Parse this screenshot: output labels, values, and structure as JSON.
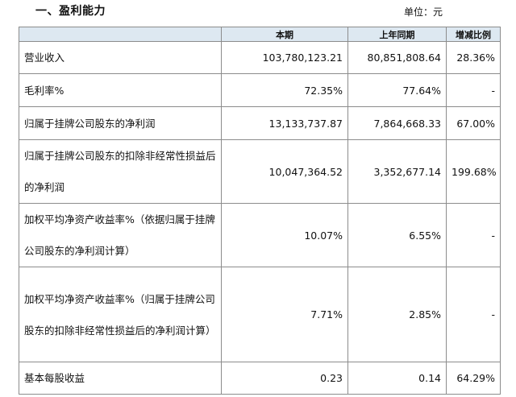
{
  "section_title": "一、盈利能力",
  "unit_label": "单位：元",
  "table": {
    "headers": [
      "",
      "本期",
      "上年同期",
      "增减比例"
    ],
    "rows": [
      {
        "label": "营业收入",
        "current": "103,780,123.21",
        "previous": "80,851,808.64",
        "change": "28.36%"
      },
      {
        "label": "毛利率%",
        "current": "72.35%",
        "previous": "77.64%",
        "change": "-"
      },
      {
        "label": "归属于挂牌公司股东的净利润",
        "current": "13,133,737.87",
        "previous": "7,864,668.33",
        "change": "67.00%"
      },
      {
        "label": "归属于挂牌公司股东的扣除非经常性损益后的净利润",
        "current": "10,047,364.52",
        "previous": "3,352,677.14",
        "change": "199.68%"
      },
      {
        "label": "加权平均净资产收益率%（依据归属于挂牌公司股东的净利润计算）",
        "current": "10.07%",
        "previous": "6.55%",
        "change": "-"
      },
      {
        "label": "加权平均净资产收益率%（归属于挂牌公司股东的扣除非经常性损益后的净利润计算）",
        "current": "7.71%",
        "previous": "2.85%",
        "change": "-"
      },
      {
        "label": "基本每股收益",
        "current": "0.23",
        "previous": "0.14",
        "change": "64.29%"
      }
    ]
  }
}
